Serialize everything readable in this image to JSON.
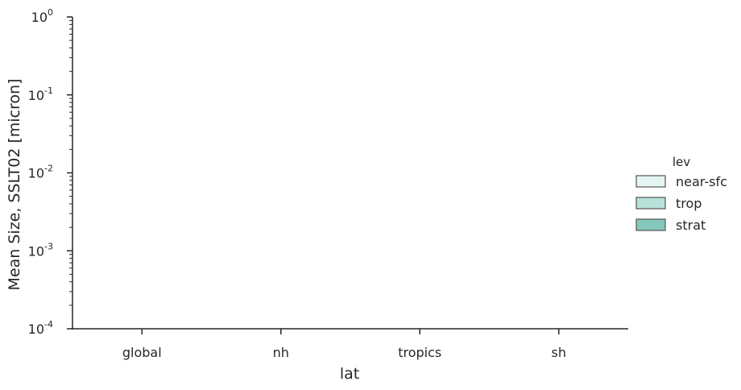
{
  "chart_data": {
    "type": "bar",
    "categories": [
      "global",
      "nh",
      "tropics",
      "sh"
    ],
    "series": [
      {
        "name": "near-sfc",
        "values": [
          null,
          null,
          null,
          null
        ]
      },
      {
        "name": "trop",
        "values": [
          null,
          null,
          null,
          null
        ]
      },
      {
        "name": "strat",
        "values": [
          null,
          null,
          null,
          null
        ]
      }
    ],
    "xlabel": "lat",
    "ylabel": "Mean Size, SSLT02 [micron]",
    "yscale": "log",
    "ylim": [
      0.0001,
      1
    ],
    "ytick_exponents": [
      "-4",
      "-3",
      "-2",
      "-1",
      "0"
    ],
    "ytick_base": "10",
    "legend": {
      "title": "lev",
      "placement": "right"
    },
    "colors": {
      "near-sfc": "#e5f5f1",
      "trop": "#b7e2d9",
      "strat": "#86c8bb"
    },
    "grid": false
  }
}
